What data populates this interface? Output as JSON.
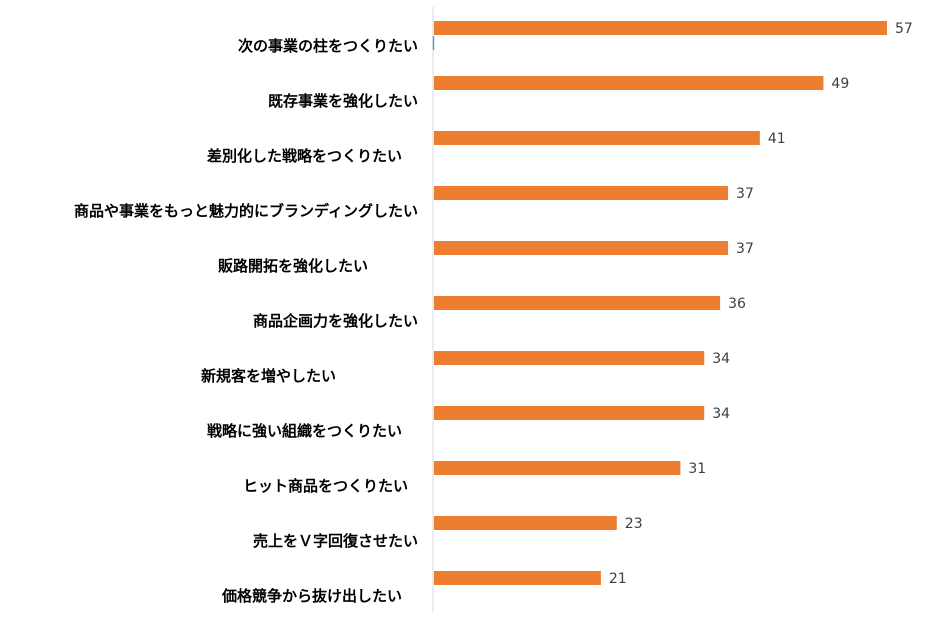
{
  "chart_data": {
    "type": "bar",
    "orientation": "horizontal",
    "title": "",
    "xlabel": "",
    "ylabel": "",
    "xlim": [
      0,
      57
    ],
    "grid": false,
    "legend": "none",
    "bar_color": "#ED7D31",
    "axis_color": "#D9D9D9",
    "categories": [
      "次の事業の柱をつくりたい",
      "既存事業を強化したい",
      "差別化した戦略をつくりたい",
      "商品や事業をもっと魅力的にブランディングしたい",
      "販路開拓を強化したい",
      "商品企画力を強化したい",
      "新規客を増やしたい",
      "戦略に強い組織をつくりたい",
      "ヒット商品をつくりたい",
      "売上をＶ字回復させたい",
      "価格競争から抜け出したい"
    ],
    "values": [
      57,
      49,
      41,
      37,
      37,
      36,
      34,
      34,
      31,
      23,
      21
    ]
  }
}
